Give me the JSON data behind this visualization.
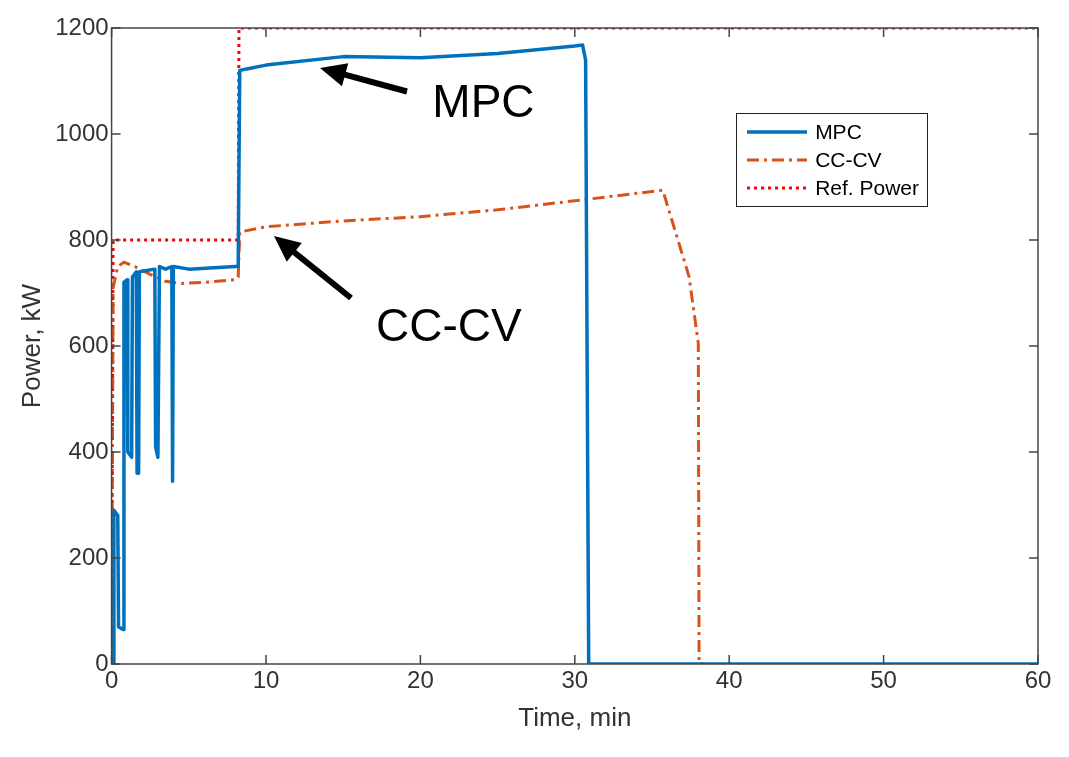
{
  "chart_data": {
    "type": "line",
    "xlabel": "Time, min",
    "ylabel": "Power, kW",
    "xlim": [
      0,
      60
    ],
    "xticks": [
      0,
      10,
      20,
      30,
      40,
      50,
      60
    ],
    "ylim": [
      0,
      1200
    ],
    "yticks": [
      0,
      200,
      400,
      600,
      800,
      1000,
      1200
    ],
    "grid": false,
    "legend": "top right",
    "marker": "none",
    "series": [
      {
        "name": "MPC",
        "color": "#0072bd",
        "line_style": "solid",
        "x": [
          0,
          0.1,
          0.15,
          0.4,
          0.45,
          0.75,
          0.8,
          1.0,
          1.05,
          1.3,
          1.35,
          1.6,
          1.65,
          1.75,
          1.8,
          2.8,
          2.85,
          3.0,
          3.1,
          3.5,
          3.9,
          3.95,
          4.0,
          5,
          8.0,
          8.2,
          8.3,
          10,
          15,
          20,
          25,
          30,
          30.5,
          30.7,
          30.9,
          60
        ],
        "values": [
          0,
          0,
          290,
          280,
          70,
          65,
          720,
          725,
          400,
          390,
          730,
          740,
          360,
          360,
          740,
          745,
          410,
          390,
          750,
          745,
          750,
          345,
          750,
          745,
          750,
          750,
          1120,
          1130,
          1146,
          1144,
          1152,
          1166,
          1168,
          1140,
          0,
          0
        ]
      },
      {
        "name": "CC-CV",
        "color": "#d95319",
        "line_style": "dashed",
        "x": [
          0,
          0.1,
          0.4,
          0.8,
          1.5,
          2.5,
          3.5,
          4.5,
          6,
          8.0,
          8.2,
          8.3,
          10,
          15,
          20,
          25,
          30,
          35.7,
          37.4,
          38.0,
          38.05,
          38.5
        ],
        "values": [
          0,
          710,
          750,
          758,
          750,
          735,
          722,
          718,
          720,
          725,
          730,
          815,
          825,
          836,
          844,
          857,
          874,
          894,
          731,
          605,
          0,
          0
        ]
      },
      {
        "name": "Ref. Power",
        "color": "#ff0000",
        "line_style": "dotted",
        "x": [
          0,
          0.1,
          8.2,
          8.25,
          60
        ],
        "values": [
          0,
          800,
          800,
          1200,
          1200
        ]
      }
    ],
    "annotations": [
      {
        "text": "MPC",
        "x": 13,
        "y": 1140
      },
      {
        "text": "CC-CV",
        "x": 10,
        "y": 822
      }
    ]
  }
}
